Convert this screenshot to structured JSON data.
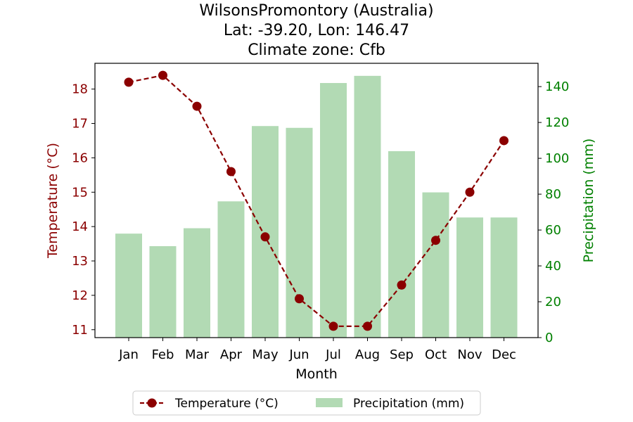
{
  "chart_data": {
    "type": "bar+line",
    "title": [
      "WilsonsPromontory (Australia)",
      "Lat: -39.20, Lon: 146.47",
      "Climate zone: Cfb"
    ],
    "xlabel": "Month",
    "categories": [
      "Jan",
      "Feb",
      "Mar",
      "Apr",
      "May",
      "Jun",
      "Jul",
      "Aug",
      "Sep",
      "Oct",
      "Nov",
      "Dec"
    ],
    "series": [
      {
        "name": "Temperature (°C)",
        "type": "line",
        "axis": "left",
        "color": "#8b0000",
        "values": [
          18.2,
          18.4,
          17.5,
          15.6,
          13.7,
          11.9,
          11.1,
          11.1,
          12.3,
          13.6,
          15.0,
          16.5
        ]
      },
      {
        "name": "Precipitation (mm)",
        "type": "bar",
        "axis": "right",
        "color": "#b2dab4",
        "values": [
          58,
          51,
          61,
          76,
          118,
          117,
          142,
          146,
          104,
          81,
          67,
          67
        ]
      }
    ],
    "y_left": {
      "label": "Temperature (°C)",
      "color": "#8b0000",
      "ylim": [
        10.77,
        18.75
      ],
      "ticks": [
        11,
        12,
        13,
        14,
        15,
        16,
        17,
        18
      ]
    },
    "y_right": {
      "label": "Precipitation (mm)",
      "color": "#008000",
      "ylim": [
        0,
        153
      ],
      "ticks": [
        0,
        20,
        40,
        60,
        80,
        100,
        120,
        140
      ]
    },
    "grid": false,
    "legend": {
      "position": "bottom-center",
      "entries": [
        "Temperature (°C)",
        "Precipitation (mm)"
      ]
    }
  }
}
